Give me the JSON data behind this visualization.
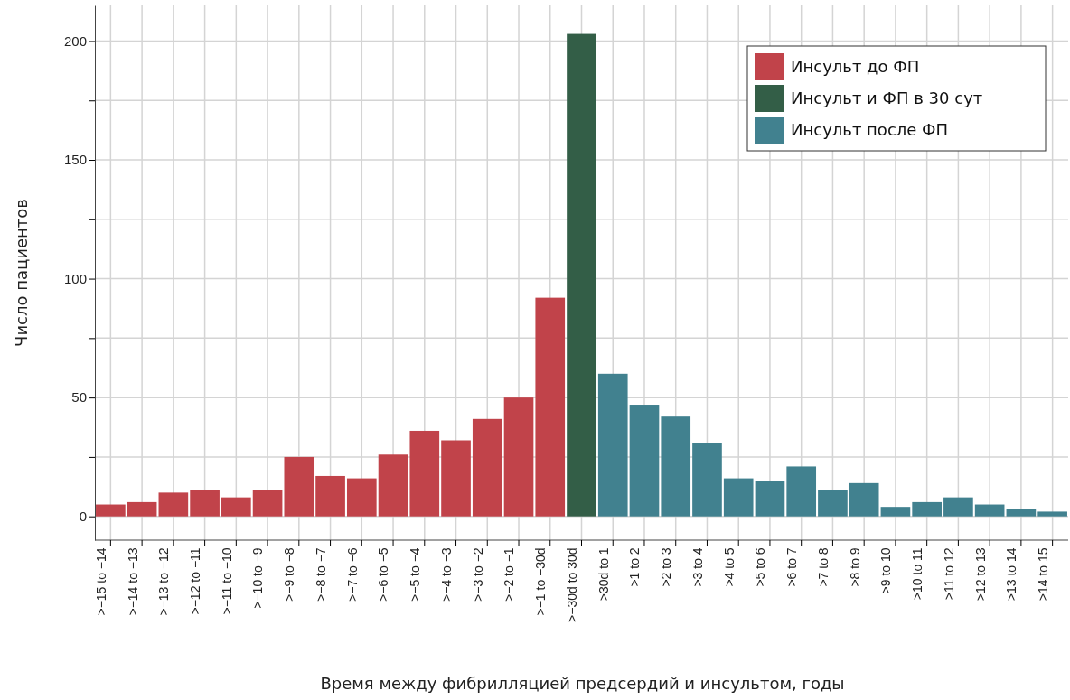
{
  "chart_data": {
    "type": "bar",
    "xlabel": "Время между фибрилляцией предсердий и инсультом, годы",
    "ylabel": "Число пациентов",
    "categories": [
      ">−15 to −14",
      ">−14 to −13",
      ">−13 to −12",
      ">−12 to −11",
      ">−11 to −10",
      ">−10 to −9",
      ">−9 to −8",
      ">−8 to −7",
      ">−7 to −6",
      ">−6 to −5",
      ">−5 to −4",
      ">−4 to −3",
      ">−3 to −2",
      ">−2 to −1",
      ">−1 to −30d",
      ">−30d to 30d",
      ">30d to 1",
      ">1 to 2",
      ">2 to 3",
      ">3 to 4",
      ">4 to 5",
      ">5 to 6",
      ">6 to 7",
      ">7 to 8",
      ">8 to 9",
      ">9 to 10",
      ">10 to 11",
      ">11 to 12",
      ">12 to 13",
      ">13 to 14",
      ">14 to 15"
    ],
    "series": [
      {
        "name": "Инсульт до ФП",
        "color": "#c1434a",
        "values": [
          5,
          6,
          10,
          11,
          8,
          11,
          25,
          17,
          16,
          26,
          36,
          32,
          41,
          50,
          92,
          null,
          null,
          null,
          null,
          null,
          null,
          null,
          null,
          null,
          null,
          null,
          null,
          null,
          null,
          null,
          null
        ]
      },
      {
        "name": "Инсульт и ФП в 30 сут",
        "color": "#335e47",
        "values": [
          null,
          null,
          null,
          null,
          null,
          null,
          null,
          null,
          null,
          null,
          null,
          null,
          null,
          null,
          null,
          203,
          null,
          null,
          null,
          null,
          null,
          null,
          null,
          null,
          null,
          null,
          null,
          null,
          null,
          null,
          null
        ]
      },
      {
        "name": "Инсульт после ФП",
        "color": "#41818f",
        "values": [
          null,
          null,
          null,
          null,
          null,
          null,
          null,
          null,
          null,
          null,
          null,
          null,
          null,
          null,
          null,
          null,
          60,
          47,
          42,
          31,
          16,
          15,
          21,
          11,
          14,
          4,
          6,
          8,
          5,
          3,
          2
        ]
      }
    ],
    "ylim": [
      -10,
      215
    ],
    "yticks": [
      0,
      {
        "value": 25,
        "label": null
      },
      50,
      {
        "value": 75,
        "label": null
      },
      100,
      {
        "value": 125,
        "label": null
      },
      150,
      {
        "value": 175,
        "label": null
      },
      200
    ],
    "grid": true,
    "legend": "top right"
  }
}
